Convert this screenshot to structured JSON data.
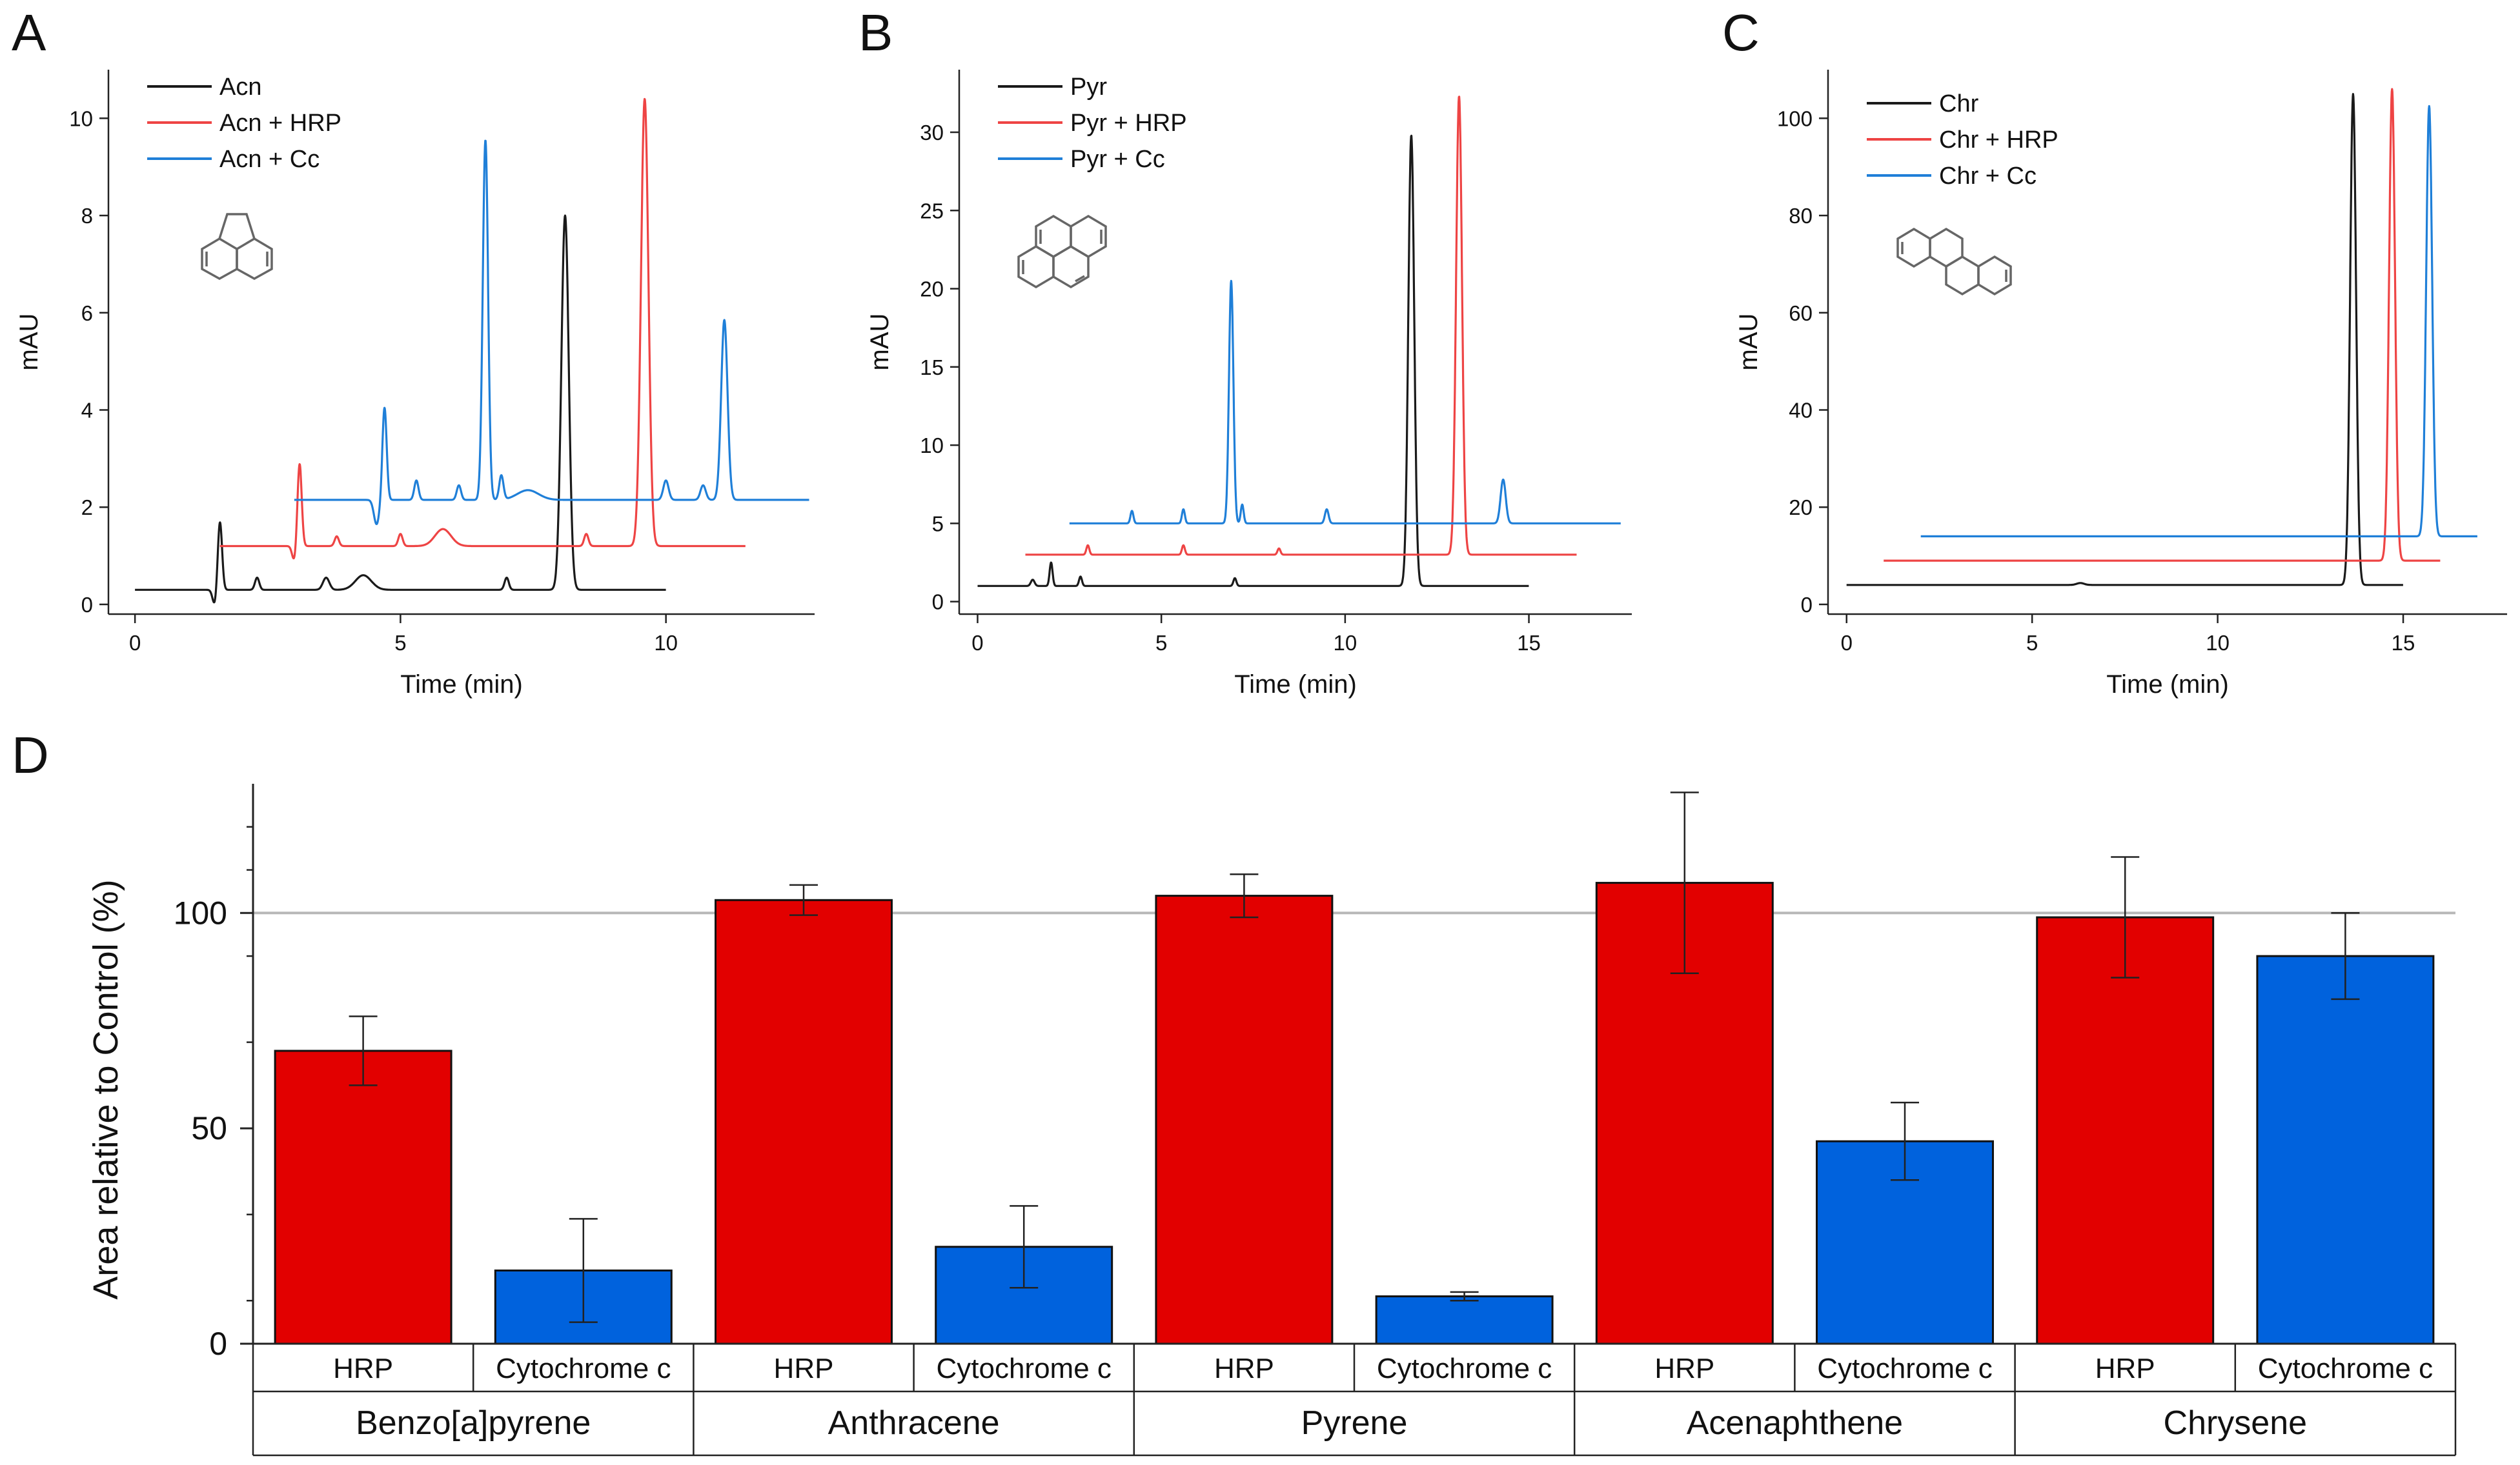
{
  "colors": {
    "black": "#1a1a1a",
    "red": "#ee4444",
    "blue": "#1f7fd8",
    "bar_red": "#e20000",
    "bar_blue": "#0062dd",
    "refline": "#b8b8b8"
  },
  "panels": [
    {
      "label": "A",
      "compound": "Acn",
      "xlabel": "Time (min)",
      "ylabel": "mAU",
      "xlim": [
        -0.5,
        12.8
      ],
      "ylim": [
        -0.2,
        11
      ],
      "xticks": [
        0,
        5,
        10
      ],
      "yticks": [
        0,
        2,
        4,
        6,
        8,
        10
      ],
      "legend": [
        "Acn",
        "Acn + HRP",
        "Acn + Cc"
      ],
      "series": [
        {
          "name": "Acn",
          "color": "black",
          "start": 0,
          "end": 10,
          "baseline": 0.3,
          "peaks": [
            [
              1.6,
              1.4,
              0.04
            ],
            [
              1.5,
              -0.3,
              0.04
            ],
            [
              2.3,
              0.25,
              0.04
            ],
            [
              3.6,
              0.25,
              0.06
            ],
            [
              4.3,
              0.3,
              0.15
            ],
            [
              7,
              0.25,
              0.04
            ],
            [
              8.1,
              7.7,
              0.07
            ]
          ]
        },
        {
          "name": "Acn + HRP",
          "color": "red",
          "start": 1.6,
          "end": 11.5,
          "baseline": 1.2,
          "peaks": [
            [
              3.1,
              1.7,
              0.04
            ],
            [
              3.0,
              -0.3,
              0.04
            ],
            [
              3.8,
              0.2,
              0.04
            ],
            [
              5.0,
              0.25,
              0.04
            ],
            [
              5.8,
              0.35,
              0.15
            ],
            [
              8.5,
              0.25,
              0.04
            ],
            [
              9.6,
              9.2,
              0.07
            ]
          ]
        },
        {
          "name": "Acn + Cc",
          "color": "blue",
          "start": 3.0,
          "end": 12.7,
          "baseline": 2.15,
          "peaks": [
            [
              4.7,
              1.9,
              0.04
            ],
            [
              4.55,
              -0.5,
              0.05
            ],
            [
              5.3,
              0.4,
              0.04
            ],
            [
              6.6,
              7.4,
              0.05
            ],
            [
              6.1,
              0.3,
              0.04
            ],
            [
              6.9,
              0.5,
              0.04
            ],
            [
              7.4,
              0.2,
              0.2
            ],
            [
              10.0,
              0.4,
              0.05
            ],
            [
              10.7,
              0.3,
              0.05
            ],
            [
              11.1,
              3.7,
              0.06
            ]
          ]
        }
      ]
    },
    {
      "label": "B",
      "compound": "Pyr",
      "xlabel": "Time (min)",
      "ylabel": "mAU",
      "xlim": [
        -0.5,
        17.8
      ],
      "ylim": [
        -0.8,
        34
      ],
      "xticks": [
        0,
        5,
        10,
        15
      ],
      "yticks": [
        0,
        5,
        10,
        15,
        20,
        25,
        30
      ],
      "legend": [
        "Pyr",
        "Pyr + HRP",
        "Pyr + Cc"
      ],
      "series": [
        {
          "name": "Pyr",
          "color": "black",
          "start": 0,
          "end": 15,
          "baseline": 1.0,
          "peaks": [
            [
              2.0,
              1.5,
              0.04
            ],
            [
              2.8,
              0.6,
              0.04
            ],
            [
              1.5,
              0.4,
              0.05
            ],
            [
              7.0,
              0.5,
              0.04
            ],
            [
              11.8,
              28.8,
              0.08
            ]
          ]
        },
        {
          "name": "Pyr + HRP",
          "color": "red",
          "start": 1.3,
          "end": 16.3,
          "baseline": 3.0,
          "peaks": [
            [
              3.0,
              0.6,
              0.04
            ],
            [
              5.6,
              0.6,
              0.04
            ],
            [
              8.2,
              0.4,
              0.04
            ],
            [
              13.1,
              29.3,
              0.08
            ]
          ]
        },
        {
          "name": "Pyr + Cc",
          "color": "blue",
          "start": 2.5,
          "end": 17.5,
          "baseline": 5.0,
          "peaks": [
            [
              4.2,
              0.8,
              0.04
            ],
            [
              5.6,
              0.9,
              0.04
            ],
            [
              6.9,
              15.5,
              0.06
            ],
            [
              7.2,
              1.2,
              0.04
            ],
            [
              9.5,
              0.9,
              0.05
            ],
            [
              14.3,
              2.8,
              0.07
            ]
          ]
        }
      ]
    },
    {
      "label": "C",
      "compound": "Chr",
      "xlabel": "Time (min)",
      "ylabel": "mAU",
      "xlim": [
        -0.5,
        17.8
      ],
      "ylim": [
        -2,
        110
      ],
      "xticks": [
        0,
        5,
        10,
        15
      ],
      "yticks": [
        0,
        20,
        40,
        60,
        80,
        100
      ],
      "legend": [
        "Chr",
        "Chr + HRP",
        "Chr + Cc"
      ],
      "series": [
        {
          "name": "Chr",
          "color": "black",
          "start": 0,
          "end": 15,
          "baseline": 4.0,
          "peaks": [
            [
              6.3,
              0.4,
              0.1
            ],
            [
              13.65,
              101,
              0.08
            ]
          ]
        },
        {
          "name": "Chr + HRP",
          "color": "red",
          "start": 1.0,
          "end": 16.0,
          "baseline": 9.0,
          "peaks": [
            [
              14.7,
              97,
              0.08
            ]
          ]
        },
        {
          "name": "Chr + Cc",
          "color": "blue",
          "start": 2.0,
          "end": 17.0,
          "baseline": 14.0,
          "peaks": [
            [
              15.7,
              88.5,
              0.08
            ]
          ]
        }
      ]
    }
  ],
  "panel_d": {
    "label": "D",
    "ylabel": "Area relative to Control (%)",
    "ylim": [
      0,
      130
    ],
    "yticks": [
      0,
      50,
      100
    ],
    "reference": 100,
    "enzymes": [
      "HRP",
      "Cytochrome c"
    ],
    "chart_data": {
      "type": "bar",
      "categories": [
        "Benzo[a]pyrene",
        "Anthracene",
        "Pyrene",
        "Acenaphthene",
        "Chrysene"
      ],
      "series": [
        {
          "name": "HRP",
          "color": "bar_red",
          "values": [
            68,
            103,
            104,
            107,
            99
          ],
          "errors": [
            8,
            3.5,
            5,
            21,
            14
          ]
        },
        {
          "name": "Cytochrome c",
          "color": "bar_blue",
          "values": [
            17,
            22.5,
            11,
            47,
            90
          ],
          "errors": [
            12,
            9.5,
            1,
            9,
            10
          ]
        }
      ]
    }
  }
}
